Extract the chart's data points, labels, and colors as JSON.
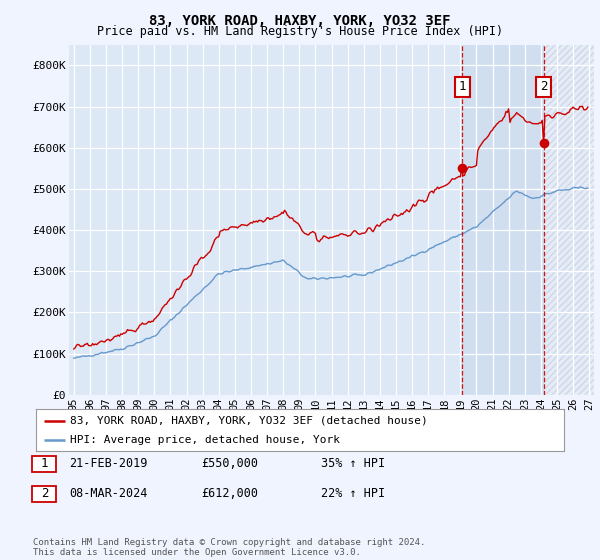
{
  "title": "83, YORK ROAD, HAXBY, YORK, YO32 3EF",
  "subtitle": "Price paid vs. HM Land Registry's House Price Index (HPI)",
  "ylim": [
    0,
    850000
  ],
  "yticks": [
    0,
    100000,
    200000,
    300000,
    400000,
    500000,
    600000,
    700000,
    800000
  ],
  "ytick_labels": [
    "£0",
    "£100K",
    "£200K",
    "£300K",
    "£400K",
    "£500K",
    "£600K",
    "£700K",
    "£800K"
  ],
  "hpi_color": "#6699cc",
  "price_color": "#cc0000",
  "sale1_x": 2019.12,
  "sale1_y": 550000,
  "sale1_label": "1",
  "sale2_x": 2024.17,
  "sale2_y": 612000,
  "sale2_label": "2",
  "vline_color": "#cc0000",
  "annotation_box_color": "#cc0000",
  "bg_color": "#f0f4ff",
  "plot_bg": "#dce8f5",
  "grid_color": "#ffffff",
  "shade_color": "#dce8f5",
  "legend_entry1": "83, YORK ROAD, HAXBY, YORK, YO32 3EF (detached house)",
  "legend_entry2": "HPI: Average price, detached house, York",
  "note1_num": "1",
  "note1_date": "21-FEB-2019",
  "note1_price": "£550,000",
  "note1_hpi": "35% ↑ HPI",
  "note2_num": "2",
  "note2_date": "08-MAR-2024",
  "note2_price": "£612,000",
  "note2_hpi": "22% ↑ HPI",
  "footer": "Contains HM Land Registry data © Crown copyright and database right 2024.\nThis data is licensed under the Open Government Licence v3.0.",
  "xlim_left": 1994.7,
  "xlim_right": 2027.3,
  "xtick_years": [
    1995,
    1996,
    1997,
    1998,
    1999,
    2000,
    2001,
    2002,
    2003,
    2004,
    2005,
    2006,
    2007,
    2008,
    2009,
    2010,
    2011,
    2012,
    2013,
    2014,
    2015,
    2016,
    2017,
    2018,
    2019,
    2020,
    2021,
    2022,
    2023,
    2024,
    2025,
    2026,
    2027
  ]
}
